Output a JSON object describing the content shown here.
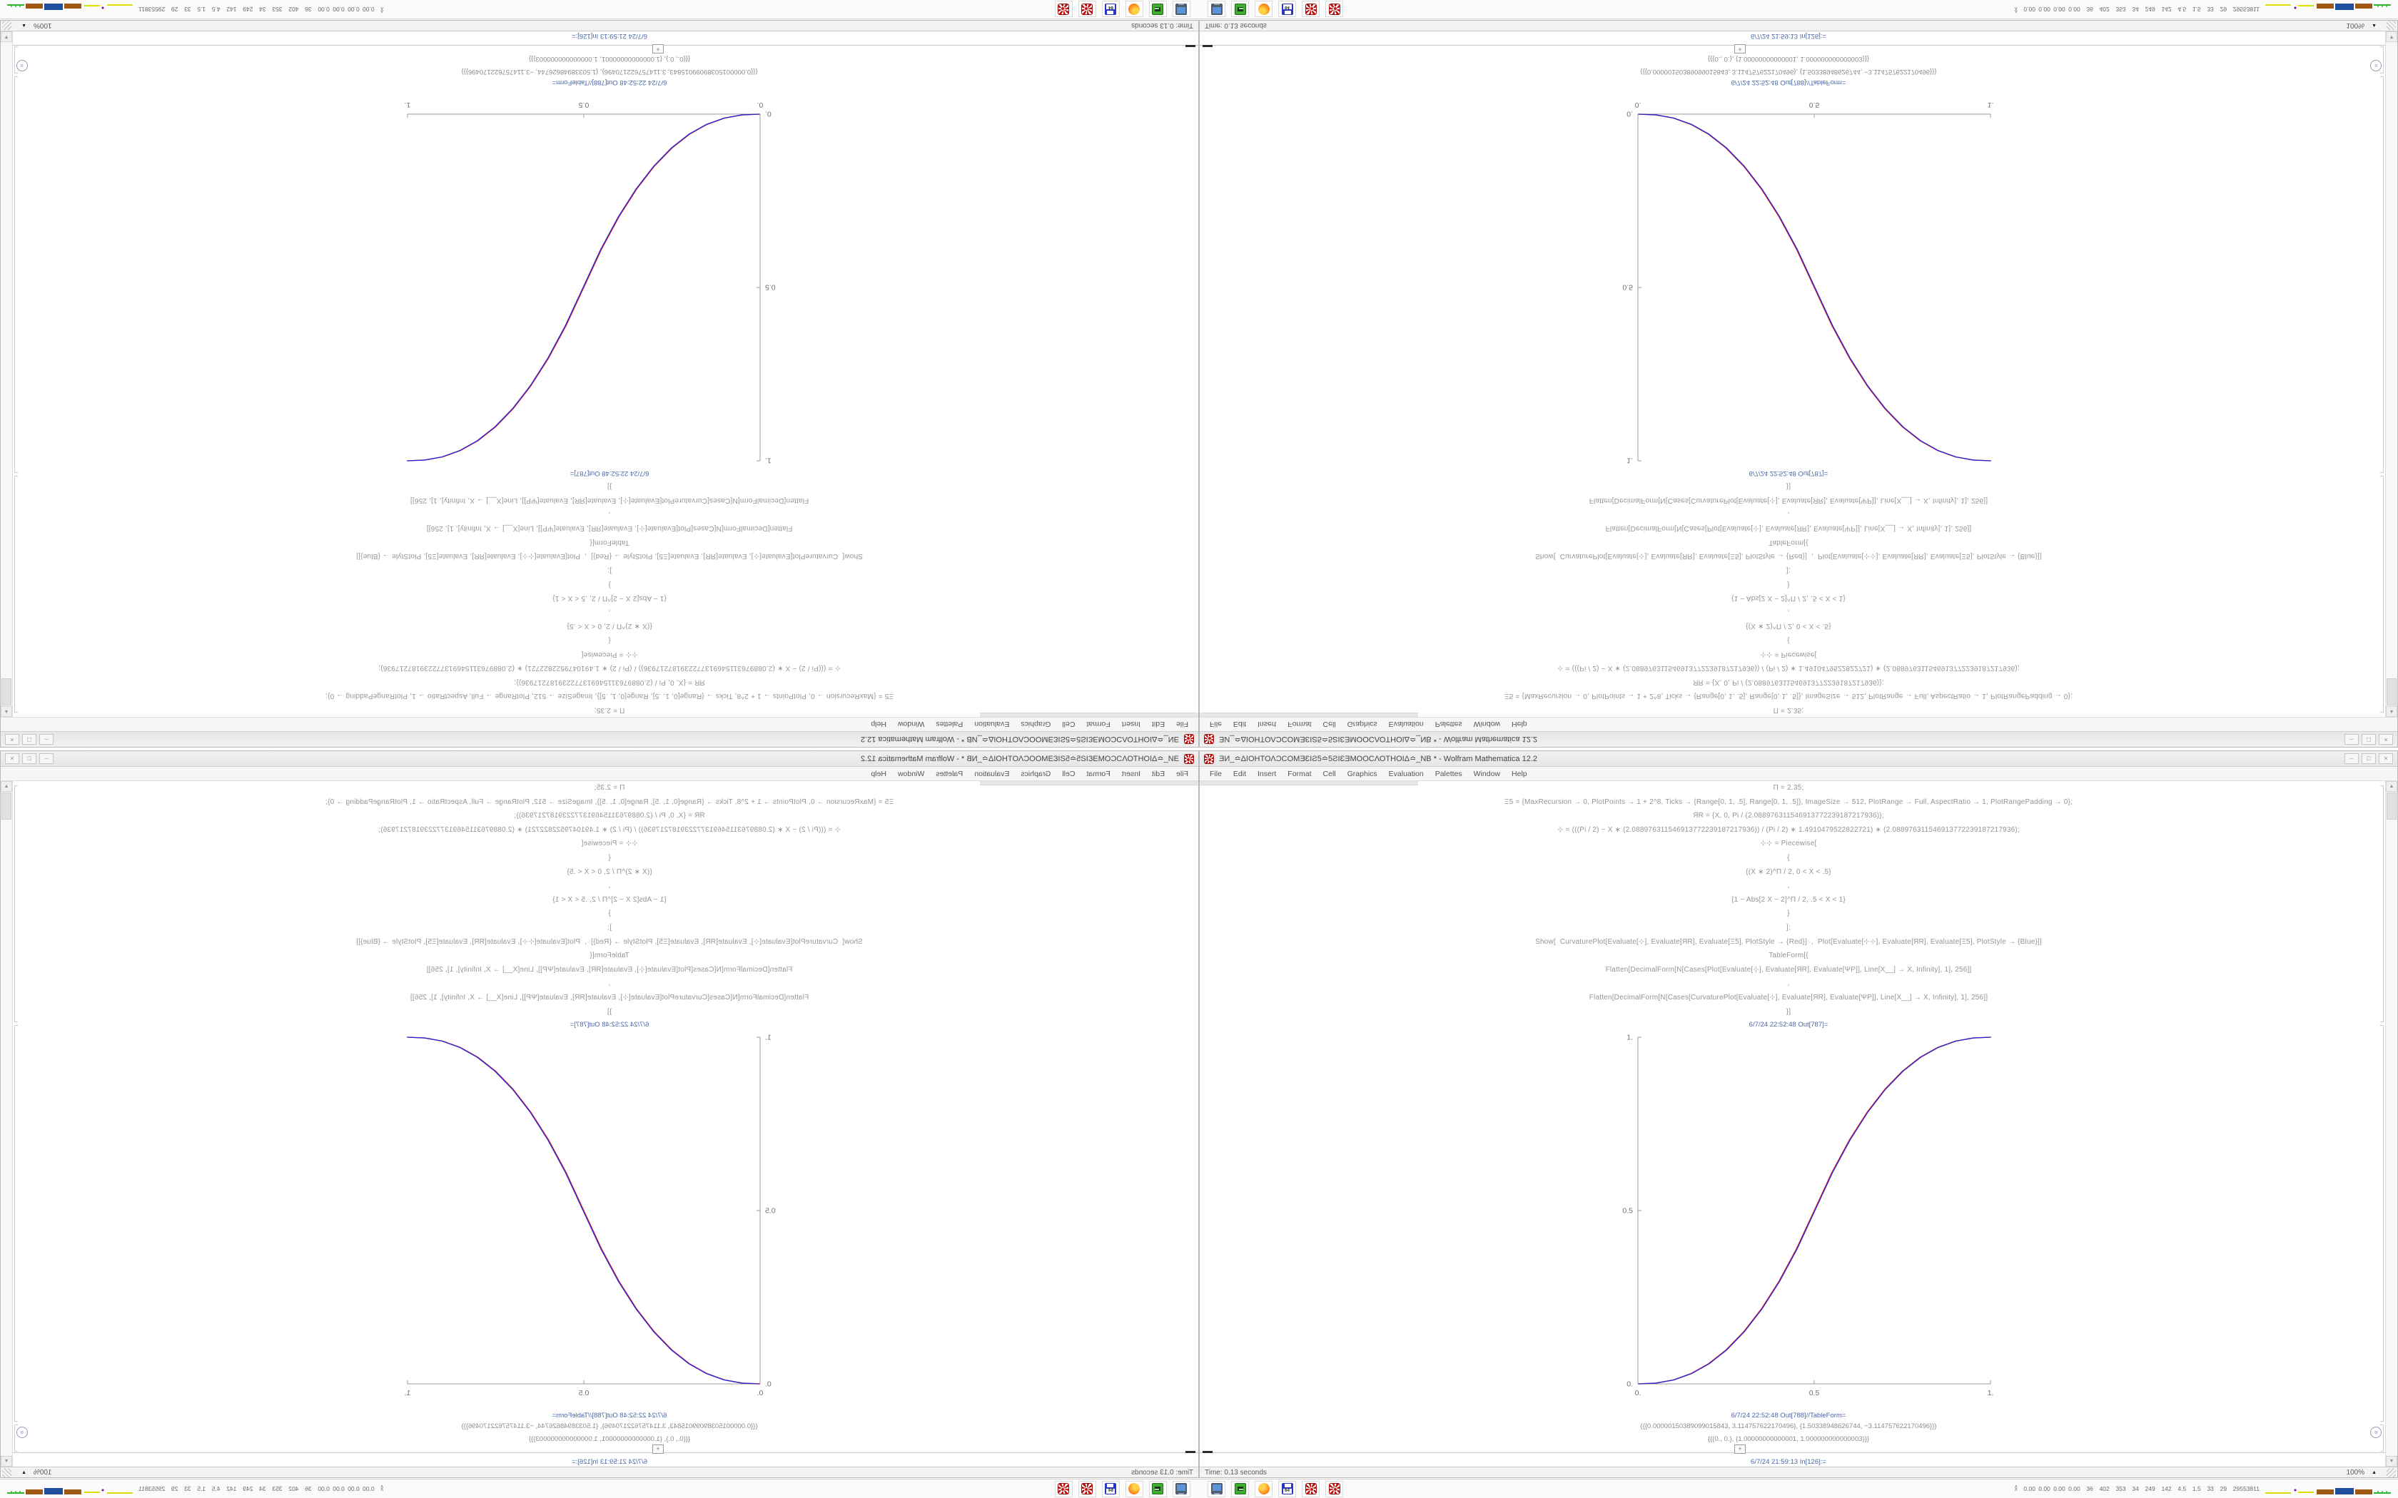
{
  "window": {
    "title": "ƎИ_≏ΔΙΟΗΤΟΛϽϹΟΜƎƐΙƧ5≏5ƧΙƐƎΜΟΟϹΛΟΤΗΟΙΔ≏_ΝΒ * - Wolfram Mathematica 12.2",
    "menu": [
      "File",
      "Edit",
      "Insert",
      "Format",
      "Cell",
      "Graphics",
      "Evaluation",
      "Palettes",
      "Window",
      "Help"
    ],
    "controls": {
      "minimize": "–",
      "maximize": "□",
      "close": "×"
    }
  },
  "notebook": {
    "code_lines": [
      "Π = 2.35;",
      "Ξ5 = {MaxRecursion → 0, PlotPoints → 1 + 2^8, Ticks → {Range[0, 1, .5], Range[0, 1, .5]}, ImageSize → 512, PlotRange → Full, AspectRatio → 1, PlotRangePadding → 0};",
      "ЯR = {X, 0, Pi / (2.088976311546913772239187217936)};",
      "⊹ = (((Pi / 2) − X ∗ (2.088976311546913772239187217936)) / (Pi / 2) ∗ 1.4910479522822721) ∗ (2.088976311546913772239187217936);",
      "⊹⊹ = Piecewise[",
      "{",
      "{(X ∗ 2)^Π / 2, 0 < X < .5}",
      ",",
      "{1 − Abs[2 X − 2]^Π / 2, .5 < X < 1}",
      "}",
      "];",
      "Show[  CurvaturePlot[Evaluate[⊹], Evaluate[ЯR], Evaluate[Ξ5], PlotStyle → {Red}]  ,  Plot[Evaluate[⊹⊹], Evaluate[ЯR], Evaluate[Ξ5], PlotStyle → {Blue}]]",
      "TableForm[{",
      "Flatten[DecimalForm[N[Cases[Plot[Evaluate[⊹], Evaluate[ЯR], Evaluate[ΨP]], Line[X__] → X, Infinity], 1], 256]]",
      ",",
      "Flatten[DecimalForm[N[Cases[CurvaturePlot[Evaluate[⊹], Evaluate[ЯR], Evaluate[ΨP]], Line[X__] → X, Infinity], 1], 256]]",
      "}]"
    ],
    "out1_label": "6/7/24 22:52:48 Out[787]=",
    "out2_label": "6/7/24 22:52:48 Out[788]//TableForm=",
    "table_rows": [
      "{{{0.00000150389099015843, 3.114757622170496}, {1.50338948626744, −3.114757622170496}}}",
      "{{{0., 0.}, {1.00000000000001, 1.000000000000003}}}"
    ],
    "in_label": "6/7/24 21:59:13 In[126]:=",
    "insert_plus": "+"
  },
  "status": {
    "time_text": "Time: 0.13 seconds",
    "zoom_level": "100%",
    "zoom_triangle": "▲"
  },
  "taskbar": {
    "icons": [
      "monitor-icon",
      "drive-icon",
      "firefox-icon",
      "floppy-64-icon",
      "wolfram-mathematica-icon",
      "wolfram-mathematica-icon"
    ],
    "floppy_label": "64",
    "tray_chevron": "∧",
    "tray_values": "0.00 0.00 0.00 0.00  36  402  353  34  249  142  4.5  1.5  33  29  29553811"
  },
  "scrollbar": {
    "up": "▲",
    "down": "▼",
    "jump": "»"
  },
  "chart_data": {
    "main_plot": {
      "type": "line",
      "title": "",
      "xlabel": "",
      "ylabel": "",
      "xlim": [
        0,
        1
      ],
      "ylim": [
        0,
        1
      ],
      "grid": false,
      "legend": "none",
      "xtick_values": [
        0,
        0.5,
        1
      ],
      "xtick_labels": [
        "0.",
        "0.5",
        "1."
      ],
      "ytick_values": [
        0,
        0.5,
        1
      ],
      "ytick_labels": [
        "0.",
        "0.5",
        "1."
      ],
      "x": [
        0,
        0.05,
        0.1,
        0.15,
        0.2,
        0.25,
        0.3,
        0.35,
        0.4,
        0.45,
        0.5,
        0.55,
        0.6,
        0.65,
        0.7,
        0.75,
        0.8,
        0.85,
        0.9,
        0.95,
        1
      ],
      "series": [
        {
          "name": "CurvaturePlot (Red)",
          "color": "#e02020",
          "values": [
            0,
            0.0022,
            0.0114,
            0.0295,
            0.058,
            0.098,
            0.1505,
            0.2162,
            0.2959,
            0.3903,
            0.5,
            0.6097,
            0.7041,
            0.7838,
            0.8495,
            0.902,
            0.942,
            0.9705,
            0.9886,
            0.9978,
            1
          ]
        },
        {
          "name": "Plot (Blue)",
          "color": "#2424d8",
          "values": [
            0,
            0.0022,
            0.0114,
            0.0295,
            0.058,
            0.098,
            0.1505,
            0.2162,
            0.2959,
            0.3903,
            0.5,
            0.6097,
            0.7041,
            0.7838,
            0.8495,
            0.902,
            0.942,
            0.9705,
            0.9886,
            0.9978,
            1
          ]
        }
      ]
    },
    "tray_sparkline": {
      "type": "mixed",
      "baseline": 18,
      "segments": [
        {
          "kind": "line",
          "color": "#dede00",
          "x1": 2,
          "x2": 38,
          "y": 16
        },
        {
          "kind": "dot",
          "color": "#7a00b4",
          "cx": 44,
          "cy": 12,
          "r": 1.5
        },
        {
          "kind": "line",
          "color": "#dede00",
          "x1": 48,
          "x2": 70,
          "y": 15
        },
        {
          "kind": "bar",
          "color": "#9e5a14",
          "x": 74,
          "w": 24,
          "h": 7
        },
        {
          "kind": "bar",
          "color": "#1d4f9e",
          "x": 100,
          "w": 26,
          "h": 9
        },
        {
          "kind": "bar",
          "color": "#9e5a14",
          "x": 128,
          "w": 24,
          "h": 7
        },
        {
          "kind": "line",
          "color": "#2eb82e",
          "x1": 154,
          "x2": 178,
          "y": 16
        },
        {
          "kind": "dot",
          "color": "#2eb82e",
          "cx": 160,
          "cy": 14,
          "r": 1
        },
        {
          "kind": "dot",
          "color": "#2eb82e",
          "cx": 166,
          "cy": 14,
          "r": 1
        },
        {
          "kind": "dot",
          "color": "#2eb82e",
          "cx": 172,
          "cy": 14,
          "r": 1
        }
      ]
    }
  },
  "quadrants": [
    {
      "name": "top-left",
      "transform": "rotate-180"
    },
    {
      "name": "top-right",
      "transform": "flip-vertical"
    },
    {
      "name": "bottom-left",
      "transform": "flip-horizontal"
    },
    {
      "name": "bottom-right",
      "transform": "none"
    }
  ]
}
